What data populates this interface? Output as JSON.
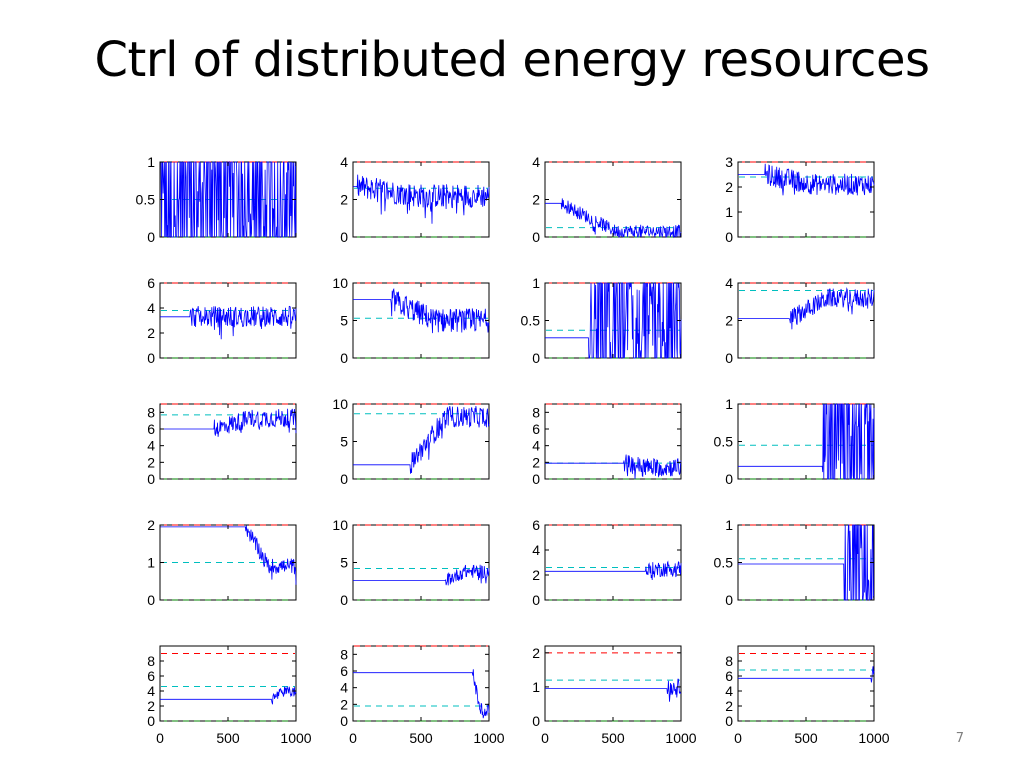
{
  "slide": {
    "title": "Ctrl of distributed energy resources",
    "page_number": "7"
  },
  "colors": {
    "signal": "#0000ff",
    "upper_bound": "#ff0000",
    "lower_bound": "#008000",
    "target": "#00bfbf"
  },
  "chart_data": {
    "type": "line",
    "layout": "5x4 small multiples",
    "grid": "off",
    "x_ticks": [
      0,
      500,
      1000
    ],
    "x_tick_labels": [
      "0",
      "500",
      "1000"
    ],
    "xlim": [
      0,
      1000
    ],
    "panels": [
      {
        "ylim": [
          0,
          1
        ],
        "ticks": [
          0,
          0.5,
          1
        ],
        "tick_labels": [
          "0",
          "0.5",
          "1"
        ],
        "upper": 1,
        "lower": 0,
        "target": 0.5,
        "init": 0.5,
        "switch": 0,
        "noise": 0.5,
        "trend": 0,
        "binary": true,
        "end": 0.5
      },
      {
        "ylim": [
          0,
          4
        ],
        "ticks": [
          0,
          2,
          4
        ],
        "tick_labels": [
          "0",
          "2",
          "4"
        ],
        "upper": 4,
        "lower": 0,
        "target": 2.6,
        "init": 2.7,
        "switch": 30,
        "noise": 0.9,
        "trend": -0.4,
        "end": 2.2
      },
      {
        "ylim": [
          0,
          4
        ],
        "ticks": [
          0,
          2,
          4
        ],
        "tick_labels": [
          "0",
          "2",
          "4"
        ],
        "upper": 4,
        "lower": 0,
        "target": 0.5,
        "init": 1.8,
        "switch": 120,
        "noise": 0.5,
        "trend": -1.5,
        "end": 0.3
      },
      {
        "ylim": [
          0,
          3
        ],
        "ticks": [
          0,
          1,
          2,
          3
        ],
        "tick_labels": [
          "0",
          "1",
          "2",
          "3"
        ],
        "upper": 3,
        "lower": 0,
        "target": 2.4,
        "init": 2.5,
        "switch": 200,
        "noise": 0.8,
        "trend": -0.2,
        "end": 2.1
      },
      {
        "ylim": [
          0,
          6
        ],
        "ticks": [
          0,
          2,
          4,
          6
        ],
        "tick_labels": [
          "0",
          "2",
          "4",
          "6"
        ],
        "upper": 6,
        "lower": 0,
        "target": 3.8,
        "init": 3.3,
        "switch": 220,
        "noise": 0.8,
        "trend": -0.4,
        "end": 3.3
      },
      {
        "ylim": [
          0,
          10
        ],
        "ticks": [
          0,
          5,
          10
        ],
        "tick_labels": [
          "0",
          "5",
          "10"
        ],
        "upper": 10,
        "lower": 0,
        "target": 5.3,
        "init": 7.8,
        "switch": 280,
        "noise": 0.9,
        "trend": -0.5,
        "end": 5.0
      },
      {
        "ylim": [
          0,
          1
        ],
        "ticks": [
          0,
          0.5,
          1
        ],
        "tick_labels": [
          "0",
          "0.5",
          "1"
        ],
        "upper": 1,
        "lower": 0,
        "target": 0.37,
        "init": 0.27,
        "switch": 320,
        "noise": 0.5,
        "trend": 0,
        "binary": true,
        "end": 0.35
      },
      {
        "ylim": [
          0,
          4
        ],
        "ticks": [
          0,
          2,
          4
        ],
        "tick_labels": [
          "0",
          "2",
          "4"
        ],
        "upper": 4,
        "lower": 0,
        "target": 3.6,
        "init": 2.1,
        "switch": 380,
        "noise": 0.7,
        "trend": 0.2,
        "end": 3.2
      },
      {
        "ylim": [
          0,
          9
        ],
        "ticks": [
          0,
          2,
          4,
          6,
          8
        ],
        "tick_labels": [
          "0",
          "2",
          "4",
          "6",
          "8"
        ],
        "upper": 9,
        "lower": 0,
        "target": 7.7,
        "init": 6.0,
        "switch": 400,
        "noise": 0.7,
        "trend": 0.6,
        "end": 7.3
      },
      {
        "ylim": [
          0,
          10
        ],
        "ticks": [
          0,
          5,
          10
        ],
        "tick_labels": [
          "0",
          "5",
          "10"
        ],
        "upper": 10,
        "lower": 0,
        "target": 8.7,
        "init": 1.9,
        "switch": 420,
        "noise": 0.8,
        "trend": 1.0,
        "end": 8.3
      },
      {
        "ylim": [
          0,
          9
        ],
        "ticks": [
          0,
          2,
          4,
          6,
          8
        ],
        "tick_labels": [
          "0",
          "2",
          "4",
          "6",
          "8"
        ],
        "upper": 9,
        "lower": 0,
        "target": 1.9,
        "init": 1.9,
        "switch": 580,
        "noise": 0.7,
        "trend": -0.1,
        "end": 1.4
      },
      {
        "ylim": [
          0,
          1
        ],
        "ticks": [
          0,
          0.5,
          1
        ],
        "tick_labels": [
          "0",
          "0.5",
          "1"
        ],
        "upper": 1,
        "lower": 0,
        "target": 0.45,
        "init": 0.17,
        "switch": 620,
        "noise": 0.5,
        "trend": 0,
        "binary": true,
        "end": 0.45
      },
      {
        "ylim": [
          0,
          2
        ],
        "ticks": [
          0,
          1,
          2
        ],
        "tick_labels": [
          "0",
          "1",
          "2"
        ],
        "upper": 2,
        "lower": 0,
        "target": 1,
        "init": 1.95,
        "switch": 630,
        "noise": 0.6,
        "trend": 0,
        "end": 0.9
      },
      {
        "ylim": [
          0,
          10
        ],
        "ticks": [
          0,
          5,
          10
        ],
        "tick_labels": [
          "0",
          "5",
          "10"
        ],
        "upper": 10,
        "lower": 0,
        "target": 4.2,
        "init": 2.6,
        "switch": 680,
        "noise": 0.5,
        "trend": 0.3,
        "end": 3.8
      },
      {
        "ylim": [
          0,
          6
        ],
        "ticks": [
          0,
          2,
          4,
          6
        ],
        "tick_labels": [
          "0",
          "2",
          "4",
          "6"
        ],
        "upper": 6,
        "lower": 0,
        "target": 2.6,
        "init": 2.3,
        "switch": 740,
        "noise": 0.6,
        "trend": 0.1,
        "end": 2.5
      },
      {
        "ylim": [
          0,
          1
        ],
        "ticks": [
          0,
          0.5,
          1
        ],
        "tick_labels": [
          "0",
          "0.5",
          "1"
        ],
        "upper": 1,
        "lower": 0,
        "target": 0.55,
        "init": 0.48,
        "switch": 780,
        "noise": 0.5,
        "trend": 0,
        "binary": true,
        "end": 0.5
      },
      {
        "ylim": [
          0,
          10
        ],
        "ticks": [
          0,
          2,
          4,
          6,
          8
        ],
        "tick_labels": [
          "0",
          "2",
          "4",
          "6",
          "8"
        ],
        "upper": 9,
        "lower": 0,
        "target": 4.6,
        "init": 2.9,
        "switch": 820,
        "noise": 0.4,
        "trend": 0.5,
        "end": 3.9
      },
      {
        "ylim": [
          0,
          9
        ],
        "ticks": [
          0,
          2,
          4,
          6,
          8
        ],
        "tick_labels": [
          "0",
          "2",
          "4",
          "6",
          "8"
        ],
        "upper": 9,
        "lower": 0,
        "target": 1.8,
        "init": 5.8,
        "switch": 880,
        "noise": 0.5,
        "trend": -1.5,
        "end": 1.4
      },
      {
        "ylim": [
          0,
          2.2
        ],
        "ticks": [
          0,
          1,
          2
        ],
        "tick_labels": [
          "0",
          "1",
          "2"
        ],
        "upper": 2,
        "lower": 0,
        "target": 1.2,
        "init": 0.95,
        "switch": 900,
        "noise": 0.6,
        "trend": 0,
        "end": 1.0
      },
      {
        "ylim": [
          0,
          10
        ],
        "ticks": [
          0,
          2,
          4,
          6,
          8
        ],
        "tick_labels": [
          "0",
          "2",
          "4",
          "6",
          "8"
        ],
        "upper": 9,
        "lower": 0,
        "target": 6.8,
        "init": 5.7,
        "switch": 980,
        "noise": 0.4,
        "trend": 0.6,
        "end": 6.8
      }
    ]
  }
}
